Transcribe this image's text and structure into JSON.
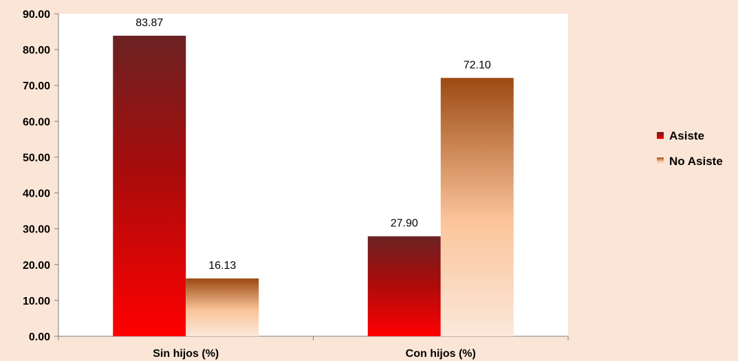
{
  "chart_data": {
    "type": "bar",
    "categories": [
      "Sin hijos (%)",
      "Con hijos (%)"
    ],
    "series": [
      {
        "name": "Asiste",
        "values": [
          83.87,
          27.9
        ],
        "value_labels": [
          "83.87",
          "27.90"
        ]
      },
      {
        "name": "No Asiste",
        "values": [
          16.13,
          72.1
        ],
        "value_labels": [
          "16.13",
          "72.10"
        ]
      }
    ],
    "ylim": [
      0,
      90
    ],
    "yticks": [
      "0.00",
      "10.00",
      "20.00",
      "30.00",
      "40.00",
      "50.00",
      "60.00",
      "70.00",
      "80.00",
      "90.00"
    ],
    "grid": false,
    "legend_position": "right",
    "title": "",
    "xlabel": "",
    "ylabel": ""
  },
  "colors": {
    "background": "#fbe5d6",
    "plot_background": "#ffffff",
    "asiste_top": "#6b2222",
    "asiste_mid": "#a80c0c",
    "asiste_bottom": "#ff0000",
    "noasiste_top": "#9c4a12",
    "noasiste_mid": "#fbc49a",
    "noasiste_bottom": "#fbe8da"
  }
}
